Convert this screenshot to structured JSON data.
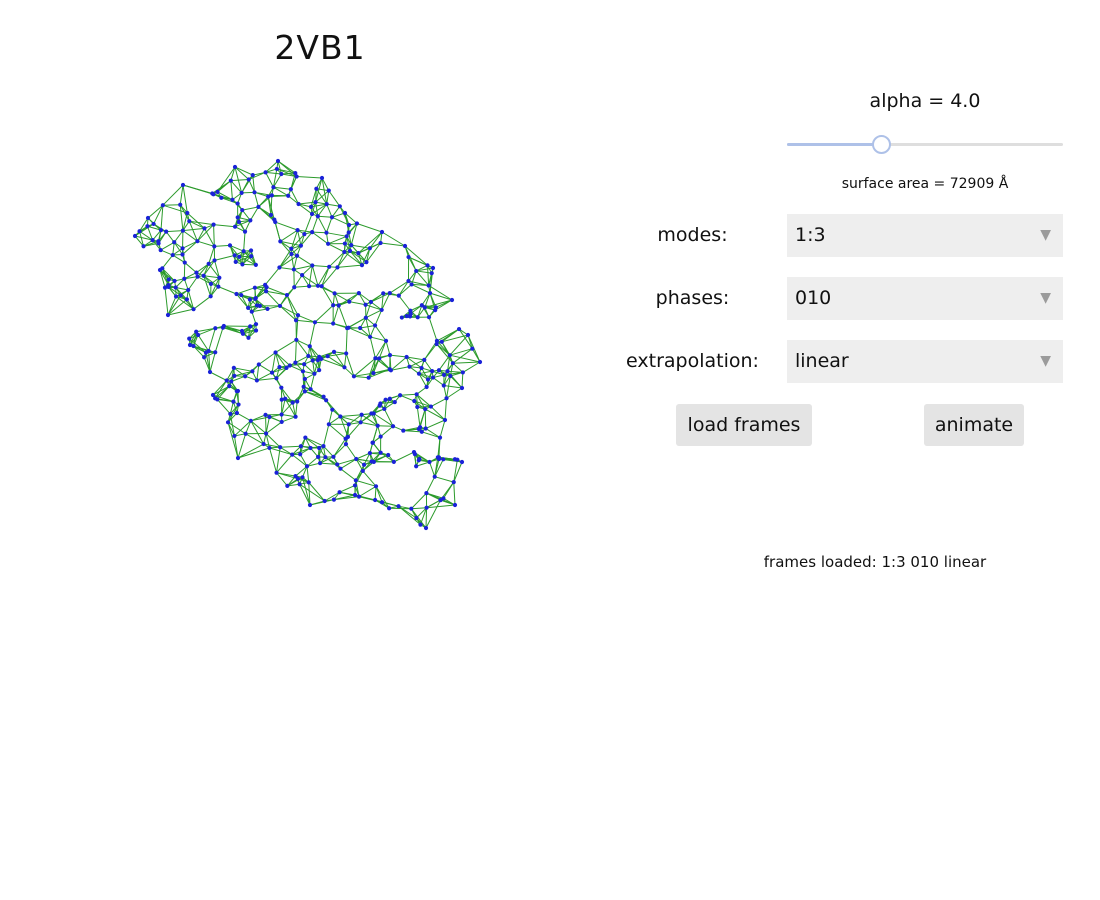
{
  "title": "2VB1",
  "alpha": {
    "label": "alpha = 4.0",
    "slider_fraction": 0.34
  },
  "surface_area": "surface area = 72909  Å",
  "controls": {
    "modes": {
      "label": "modes:",
      "value": "1:3"
    },
    "phases": {
      "label": "phases:",
      "value": "010"
    },
    "extrapolation": {
      "label": "extrapolation:",
      "value": "linear"
    }
  },
  "buttons": {
    "load_frames": "load frames",
    "animate": "animate"
  },
  "status": "frames loaded: 1:3 010 linear",
  "colors": {
    "edge": "#2b9a2b",
    "node": "#1a22d8",
    "slider_accent": "#aec1e8",
    "select_bg": "#eeeeee",
    "button_bg": "#e4e4e4"
  },
  "icons": {
    "dropdown": "triangle-down-icon"
  }
}
